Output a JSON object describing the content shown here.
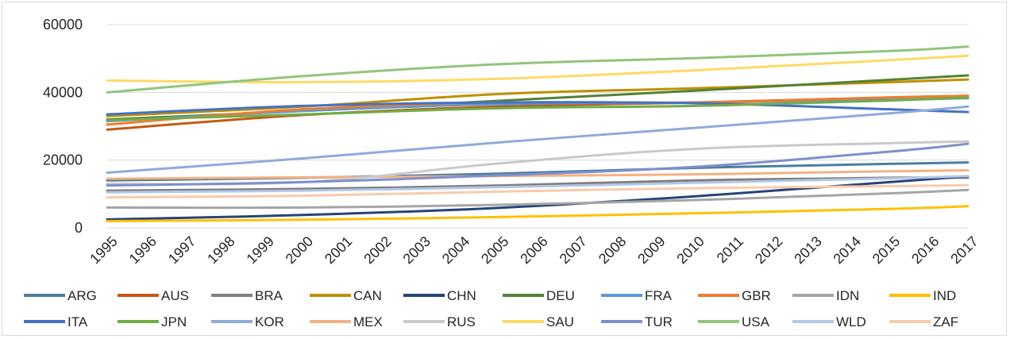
{
  "chart_data": {
    "type": "line",
    "title": "",
    "xlabel": "",
    "ylabel": "",
    "ylim": [
      0,
      60000
    ],
    "yticks": [
      0,
      20000,
      40000,
      60000
    ],
    "grid": "horizontal",
    "legend_position": "bottom",
    "x": [
      "1995",
      "1996",
      "1997",
      "1998",
      "1999",
      "2000",
      "2001",
      "2002",
      "2003",
      "2004",
      "2005",
      "2006",
      "2007",
      "2008",
      "2009",
      "2010",
      "2011",
      "2012",
      "2013",
      "2014",
      "2015",
      "2016",
      "2017"
    ],
    "series": [
      {
        "name": "ARG",
        "color": "#4a7ea1",
        "values": [
          [
            1995,
            14000
          ],
          [
            2000,
            14800
          ],
          [
            2005,
            16000
          ],
          [
            2010,
            17700
          ],
          [
            2015,
            18900
          ],
          [
            2017,
            19300
          ]
        ]
      },
      {
        "name": "AUS",
        "color": "#c55a11",
        "values": [
          [
            1995,
            29000
          ],
          [
            2000,
            33300
          ],
          [
            2005,
            35800
          ],
          [
            2010,
            37000
          ],
          [
            2015,
            38500
          ],
          [
            2017,
            39000
          ]
        ]
      },
      {
        "name": "BRA",
        "color": "#7f7f7f",
        "values": [
          [
            1995,
            11000
          ],
          [
            2000,
            11500
          ],
          [
            2005,
            12500
          ],
          [
            2010,
            14000
          ],
          [
            2015,
            14800
          ],
          [
            2017,
            14800
          ]
        ]
      },
      {
        "name": "CAN",
        "color": "#bf9000",
        "values": [
          [
            1995,
            33000
          ],
          [
            2000,
            35800
          ],
          [
            2005,
            39500
          ],
          [
            2010,
            41200
          ],
          [
            2015,
            43000
          ],
          [
            2017,
            43800
          ]
        ]
      },
      {
        "name": "CHN",
        "color": "#264478",
        "values": [
          [
            1995,
            2500
          ],
          [
            2000,
            3800
          ],
          [
            2005,
            5900
          ],
          [
            2010,
            9300
          ],
          [
            2015,
            13500
          ],
          [
            2017,
            15200
          ]
        ]
      },
      {
        "name": "DEU",
        "color": "#548235",
        "values": [
          [
            1995,
            32000
          ],
          [
            2000,
            34500
          ],
          [
            2005,
            37500
          ],
          [
            2010,
            40500
          ],
          [
            2015,
            43700
          ],
          [
            2017,
            45000
          ]
        ]
      },
      {
        "name": "FRA",
        "color": "#5b9bd5",
        "values": [
          [
            1995,
            31500
          ],
          [
            2000,
            34500
          ],
          [
            2005,
            36500
          ],
          [
            2010,
            37000
          ],
          [
            2015,
            37800
          ],
          [
            2017,
            38300
          ]
        ]
      },
      {
        "name": "GBR",
        "color": "#ed7d31",
        "values": [
          [
            1995,
            30500
          ],
          [
            2000,
            35000
          ],
          [
            2005,
            37000
          ],
          [
            2010,
            37000
          ],
          [
            2015,
            38500
          ],
          [
            2017,
            39000
          ]
        ]
      },
      {
        "name": "IDN",
        "color": "#a5a5a5",
        "values": [
          [
            1995,
            6000
          ],
          [
            2000,
            6000
          ],
          [
            2005,
            6800
          ],
          [
            2010,
            8200
          ],
          [
            2015,
            10200
          ],
          [
            2017,
            11200
          ]
        ]
      },
      {
        "name": "IND",
        "color": "#ffc000",
        "values": [
          [
            1995,
            2000
          ],
          [
            2000,
            2400
          ],
          [
            2005,
            3200
          ],
          [
            2010,
            4300
          ],
          [
            2015,
            5600
          ],
          [
            2017,
            6400
          ]
        ]
      },
      {
        "name": "ITA",
        "color": "#4472c4",
        "values": [
          [
            1995,
            33500
          ],
          [
            2000,
            36000
          ],
          [
            2005,
            37000
          ],
          [
            2010,
            36800
          ],
          [
            2015,
            35000
          ],
          [
            2017,
            34200
          ]
        ]
      },
      {
        "name": "JPN",
        "color": "#70ad47",
        "values": [
          [
            1995,
            31800
          ],
          [
            2000,
            33500
          ],
          [
            2005,
            35300
          ],
          [
            2010,
            36000
          ],
          [
            2015,
            37600
          ],
          [
            2017,
            38500
          ]
        ]
      },
      {
        "name": "KOR",
        "color": "#8faadc",
        "values": [
          [
            1995,
            16300
          ],
          [
            2000,
            20500
          ],
          [
            2005,
            25200
          ],
          [
            2010,
            29500
          ],
          [
            2015,
            33800
          ],
          [
            2017,
            35800
          ]
        ]
      },
      {
        "name": "MEX",
        "color": "#f4b183",
        "values": [
          [
            1995,
            14500
          ],
          [
            2000,
            14900
          ],
          [
            2005,
            15300
          ],
          [
            2010,
            15800
          ],
          [
            2015,
            16700
          ],
          [
            2017,
            17000
          ]
        ]
      },
      {
        "name": "RUS",
        "color": "#c9c9c9",
        "values": [
          [
            1995,
            13000
          ],
          [
            2000,
            13500
          ],
          [
            2005,
            19000
          ],
          [
            2010,
            23300
          ],
          [
            2015,
            25000
          ],
          [
            2017,
            25500
          ]
        ]
      },
      {
        "name": "SAU",
        "color": "#ffd966",
        "values": [
          [
            1995,
            43500
          ],
          [
            2000,
            43000
          ],
          [
            2005,
            44000
          ],
          [
            2010,
            46500
          ],
          [
            2015,
            49500
          ],
          [
            2017,
            50800
          ]
        ]
      },
      {
        "name": "TUR",
        "color": "#7f8fcc",
        "values": [
          [
            1995,
            12500
          ],
          [
            2000,
            13500
          ],
          [
            2005,
            15500
          ],
          [
            2010,
            18000
          ],
          [
            2015,
            22500
          ],
          [
            2017,
            24800
          ]
        ]
      },
      {
        "name": "USA",
        "color": "#92c47d",
        "values": [
          [
            1995,
            40000
          ],
          [
            2000,
            44800
          ],
          [
            2005,
            48300
          ],
          [
            2010,
            50100
          ],
          [
            2015,
            52200
          ],
          [
            2017,
            53500
          ]
        ]
      },
      {
        "name": "WLD",
        "color": "#b4c7e7",
        "values": [
          [
            1995,
            10500
          ],
          [
            2000,
            11000
          ],
          [
            2005,
            12000
          ],
          [
            2010,
            13300
          ],
          [
            2015,
            14600
          ],
          [
            2017,
            15300
          ]
        ]
      },
      {
        "name": "ZAF",
        "color": "#f8cbad",
        "values": [
          [
            1995,
            9000
          ],
          [
            2000,
            9500
          ],
          [
            2005,
            10700
          ],
          [
            2010,
            11700
          ],
          [
            2015,
            12300
          ],
          [
            2017,
            12600
          ]
        ]
      }
    ]
  }
}
